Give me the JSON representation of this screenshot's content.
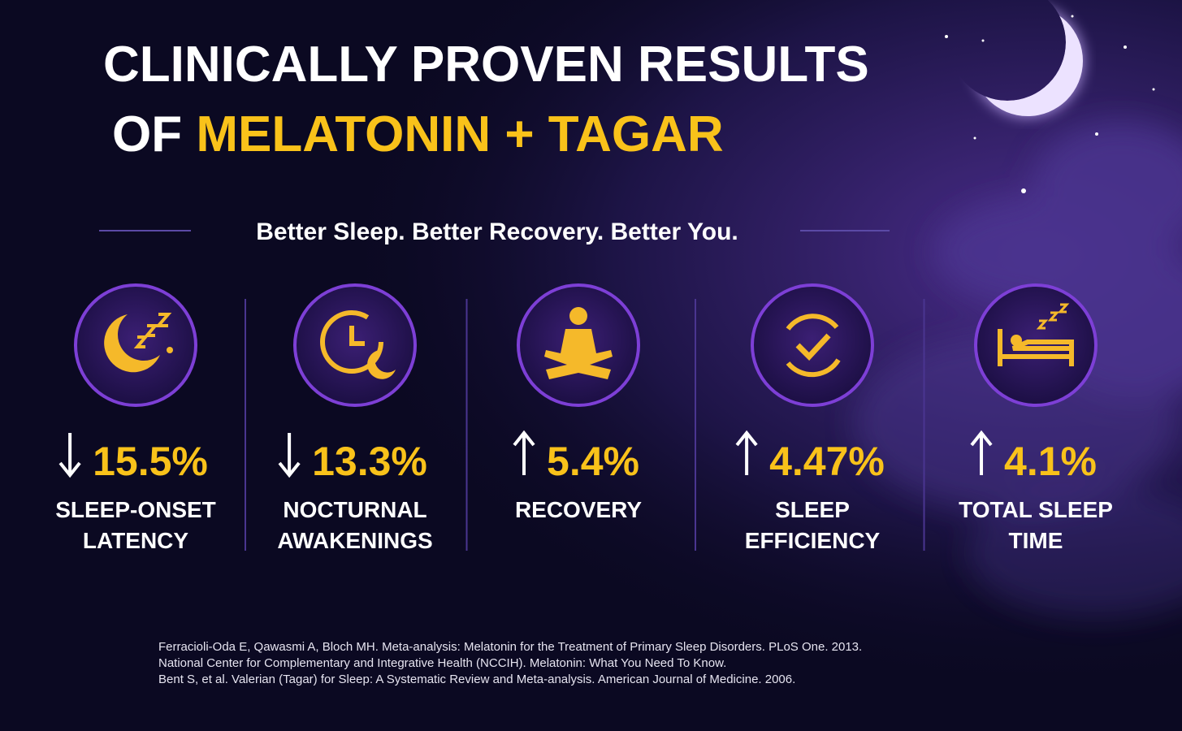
{
  "header": {
    "title_line1": "CLINICALLY PROVEN RESULTS",
    "title_line2_prefix": "OF",
    "title_line2_highlight": "MELATONIN + TAGAR",
    "subtitle": "Better Sleep. Better Recovery. Better You."
  },
  "stats": [
    {
      "trend": "down",
      "value": "15.5%",
      "label_lines": [
        "SLEEP-ONSET",
        "LATENCY"
      ]
    },
    {
      "trend": "down",
      "value": "13.3%",
      "label_lines": [
        "NOCTURNAL",
        "AWAKENINGS"
      ]
    },
    {
      "trend": "up",
      "value": "5.4%",
      "label_lines": [
        "RECOVERY"
      ]
    },
    {
      "trend": "up",
      "value": "4.47%",
      "label_lines": [
        "SLEEP",
        "EFFICIENCY"
      ]
    },
    {
      "trend": "up",
      "value": "4.1%",
      "label_lines": [
        "TOTAL SLEEP",
        "TIME"
      ]
    }
  ],
  "references": [
    "Ferracioli-Oda E, Qawasmi A, Bloch MH. Meta-analysis: Melatonin for the Treatment of Primary Sleep Disorders. PLoS One. 2013.",
    "National Center for Complementary and Integrative Health (NCCIH). Melatonin: What You Need To Know.",
    "Bent S, et al. Valerian (Tagar) for Sleep: A Systematic Review and Meta-analysis. American Journal of Medicine. 2006."
  ]
}
